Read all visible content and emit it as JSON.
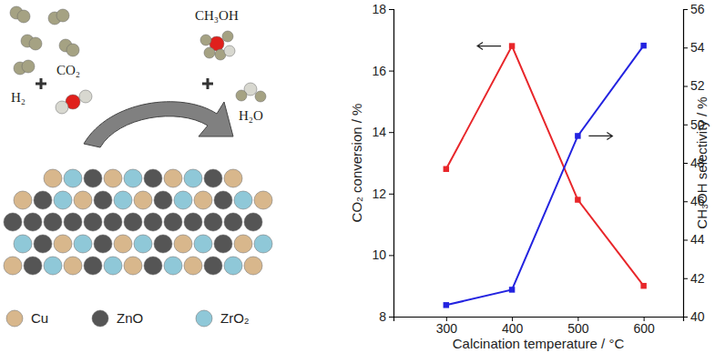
{
  "chart_data": {
    "type": "line",
    "x_label": "Calcination temperature / °C",
    "y_label": "CO₂ conversion / %",
    "y2_label": "CH₃OH selectivity / %",
    "x": [
      300,
      400,
      500,
      600
    ],
    "xlim": [
      220,
      660
    ],
    "xticks": [
      300,
      400,
      500,
      600
    ],
    "ylim": [
      8,
      18
    ],
    "yticks": [
      8,
      10,
      12,
      14,
      16,
      18
    ],
    "y2lim": [
      40,
      56
    ],
    "y2ticks": [
      40,
      42,
      44,
      46,
      48,
      50,
      52,
      54,
      56
    ],
    "marker": "square",
    "series": [
      {
        "name": "CO₂ conversion",
        "color": "#e8262a",
        "values": [
          12.8,
          16.8,
          11.8,
          9.0
        ]
      },
      {
        "name": "CH₃OH selectivity",
        "color": "#2323e0",
        "axis": "y2",
        "values": [
          40.6,
          41.4,
          49.4,
          54.1
        ]
      }
    ]
  },
  "diagram": {
    "reactants": [
      {
        "label": "H₂"
      },
      {
        "label": "CO₂"
      }
    ],
    "products": [
      {
        "label": "CH₃OH"
      },
      {
        "label": "H₂O"
      }
    ],
    "legend": [
      {
        "label": "Cu",
        "color": "#d8b78c"
      },
      {
        "label": "ZnO",
        "color": "#555555"
      },
      {
        "label": "ZrO₂",
        "color": "#8fc8d8"
      }
    ]
  }
}
